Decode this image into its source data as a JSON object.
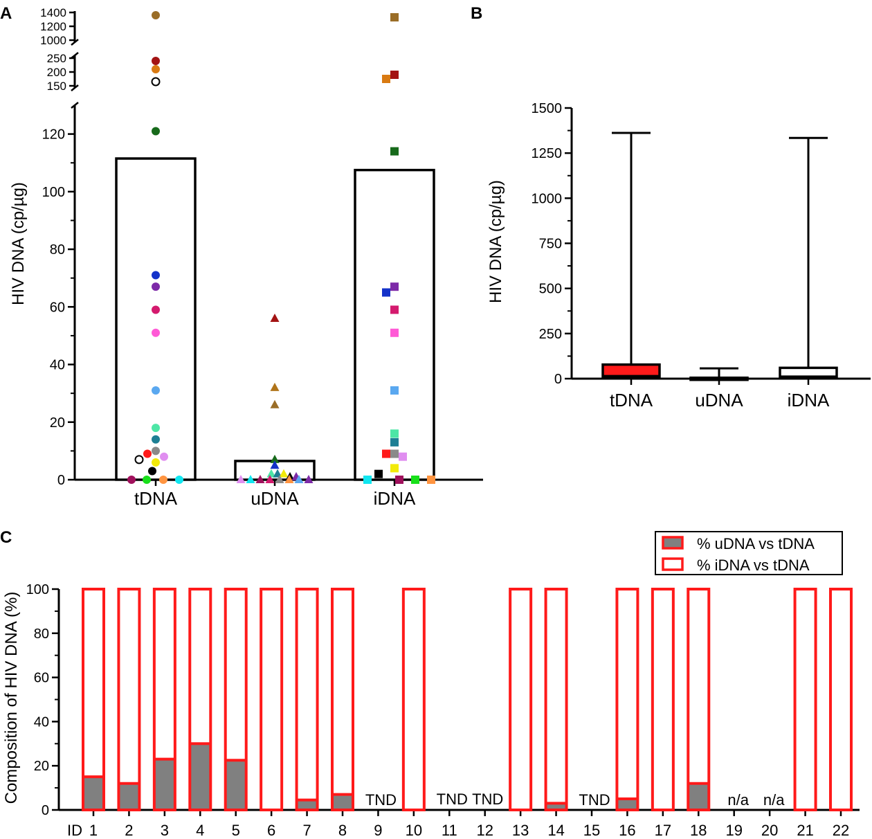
{
  "chart_data": [
    {
      "panel": "A",
      "type": "bar-scatter",
      "ylabel": "HIV DNA (cp/µg)",
      "categories": [
        "tDNA",
        "uDNA",
        "iDNA"
      ],
      "bar_means": [
        111.5,
        6.5,
        107.5
      ],
      "axis_lower": {
        "ylim": [
          0,
          130
        ],
        "ticks": [
          "0",
          "20",
          "40",
          "60",
          "80",
          "100",
          "120"
        ]
      },
      "axis_break1": {
        "ylim": [
          150,
          250
        ],
        "ticks": [
          "150",
          "200",
          "250"
        ]
      },
      "axis_break2": {
        "ylim": [
          1000,
          1400
        ],
        "ticks": [
          "1000",
          "1200",
          "1400"
        ]
      },
      "points": {
        "tDNA": [
          {
            "v": 1360,
            "c": "#9a6d27"
          },
          {
            "v": 240,
            "c": "#a31313"
          },
          {
            "v": 210,
            "c": "#d97a12"
          },
          {
            "v": 165,
            "c": "none"
          },
          {
            "v": 121,
            "c": "#176a1b"
          },
          {
            "v": 71,
            "c": "#1432c9"
          },
          {
            "v": 67,
            "c": "#7d2aa8"
          },
          {
            "v": 59,
            "c": "#d41a6e"
          },
          {
            "v": 51,
            "c": "#ff5ad6"
          },
          {
            "v": 31,
            "c": "#5aa8f0"
          },
          {
            "v": 18,
            "c": "#4de6a6"
          },
          {
            "v": 14,
            "c": "#1d7f94"
          },
          {
            "v": 10,
            "c": "#8a8a8a"
          },
          {
            "v": 9,
            "c": "#ff1a1a"
          },
          {
            "v": 8,
            "c": "#e08ef0"
          },
          {
            "v": 7,
            "c": "none"
          },
          {
            "v": 6,
            "c": "#f2ea0a"
          },
          {
            "v": 3,
            "c": "#000000"
          },
          {
            "v": 0,
            "c": "#a0105c"
          },
          {
            "v": 0,
            "c": "#18e01a"
          },
          {
            "v": 0,
            "c": "#ff9440"
          },
          {
            "v": 0,
            "c": "#10e6f0"
          }
        ],
        "uDNA": [
          {
            "v": 56,
            "c": "#a31313"
          },
          {
            "v": 32,
            "c": "#b0741a"
          },
          {
            "v": 26,
            "c": "#9a6d27"
          },
          {
            "v": 7,
            "c": "#176a1b"
          },
          {
            "v": 5,
            "c": "#1432c9"
          },
          {
            "v": 2,
            "c": "#4de6a6"
          },
          {
            "v": 2,
            "c": "#1d7f94"
          },
          {
            "v": 2,
            "c": "#f2ea0a"
          },
          {
            "v": 1,
            "c": "#000000"
          },
          {
            "v": 1,
            "c": "#7d2aa8"
          },
          {
            "v": 0,
            "c": "#e08ef0"
          },
          {
            "v": 0,
            "c": "#10e6f0"
          },
          {
            "v": 0,
            "c": "#a0105c"
          },
          {
            "v": 0,
            "c": "#d41a6e"
          },
          {
            "v": 0,
            "c": "#8a8a8a"
          },
          {
            "v": 0,
            "c": "#ff9440"
          },
          {
            "v": 0,
            "c": "#5aa8f0"
          },
          {
            "v": 0,
            "c": "#7d2aa8"
          }
        ],
        "iDNA": [
          {
            "v": 1330,
            "c": "#9a6d27"
          },
          {
            "v": 190,
            "c": "#a31313"
          },
          {
            "v": 175,
            "c": "#d97a12"
          },
          {
            "v": 114,
            "c": "#176a1b"
          },
          {
            "v": 67,
            "c": "#7d2aa8"
          },
          {
            "v": 65,
            "c": "#1432c9"
          },
          {
            "v": 59,
            "c": "#d41a6e"
          },
          {
            "v": 51,
            "c": "#ff5ad6"
          },
          {
            "v": 31,
            "c": "#5aa8f0"
          },
          {
            "v": 16,
            "c": "#4de6a6"
          },
          {
            "v": 13,
            "c": "#1d7f94"
          },
          {
            "v": 9,
            "c": "#8a8a8a"
          },
          {
            "v": 9,
            "c": "#ff1a1a"
          },
          {
            "v": 8,
            "c": "#e08ef0"
          },
          {
            "v": 4,
            "c": "#f2ea0a"
          },
          {
            "v": 2,
            "c": "#000000"
          },
          {
            "v": 0,
            "c": "#10e6f0"
          },
          {
            "v": 0,
            "c": "#a0105c"
          },
          {
            "v": 0,
            "c": "#18e01a"
          },
          {
            "v": 0,
            "c": "#ff9440"
          }
        ]
      }
    },
    {
      "panel": "B",
      "type": "boxplot",
      "ylabel": "HIV DNA (cp/µg)",
      "ylim": [
        0,
        1500
      ],
      "ticks": [
        "0",
        "250",
        "500",
        "750",
        "1000",
        "1250",
        "1500"
      ],
      "categories": [
        "tDNA",
        "uDNA",
        "iDNA"
      ],
      "boxes": [
        {
          "min": 0,
          "q1": 5,
          "median": 15,
          "q3": 78,
          "max": 1362,
          "fill": "#ff1a1a"
        },
        {
          "min": 0,
          "q1": 0,
          "median": 1,
          "q3": 5,
          "max": 57,
          "fill": "#ffffff"
        },
        {
          "min": 0,
          "q1": 4,
          "median": 12,
          "q3": 60,
          "max": 1334,
          "fill": "#ffffff"
        }
      ]
    },
    {
      "panel": "C",
      "type": "stacked-bar",
      "ylabel": "Composition of HIV DNA (%)",
      "ylim": [
        0,
        100
      ],
      "ticks": [
        "0",
        "20",
        "40",
        "60",
        "80",
        "100"
      ],
      "id_label": "ID",
      "categories": [
        "1",
        "2",
        "3",
        "4",
        "5",
        "6",
        "7",
        "8",
        "9",
        "10",
        "11",
        "12",
        "13",
        "14",
        "15",
        "16",
        "17",
        "18",
        "19",
        "20",
        "21",
        "22"
      ],
      "series": [
        {
          "name": "% uDNA vs tDNA",
          "values": [
            15,
            12,
            23,
            30,
            22.5,
            0,
            4.5,
            7,
            null,
            0,
            null,
            null,
            0,
            3,
            null,
            5,
            0,
            12,
            null,
            null,
            0,
            0
          ]
        },
        {
          "name": "% iDNA vs tDNA",
          "values": [
            85,
            88,
            77,
            70,
            77.5,
            100,
            95.5,
            93,
            null,
            100,
            null,
            null,
            100,
            97,
            null,
            95,
            100,
            88,
            null,
            null,
            100,
            100
          ]
        }
      ],
      "annotations": [
        "",
        "",
        "",
        "",
        "",
        "",
        "",
        "",
        "TND",
        "",
        "TND",
        "TND",
        "",
        "",
        "TND",
        "",
        "",
        "",
        "n/a",
        "n/a",
        "",
        ""
      ]
    }
  ],
  "panel_labels": [
    "A",
    "B",
    "C"
  ],
  "colors": {
    "bar_outline": "#ff1a1a",
    "udna_fill": "#808080",
    "axis": "#000000"
  }
}
